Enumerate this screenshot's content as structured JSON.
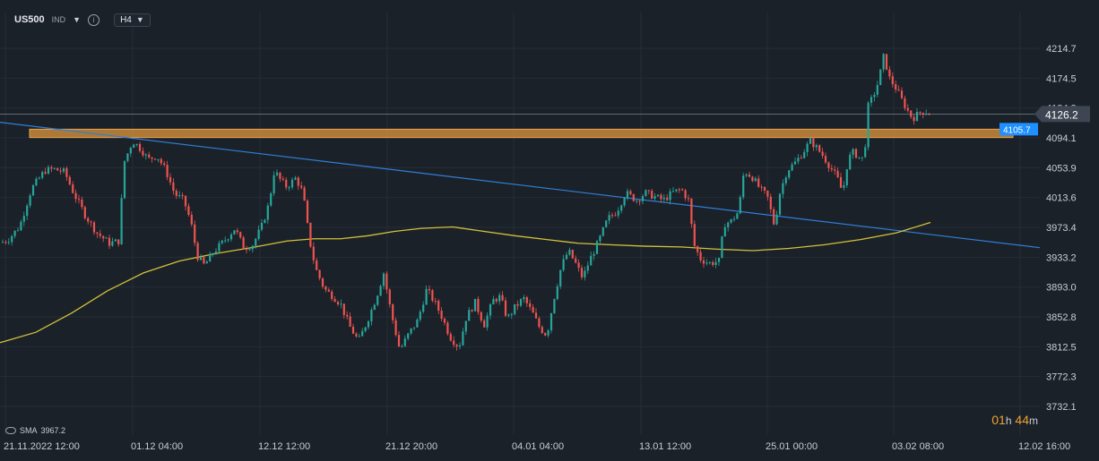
{
  "header": {
    "symbol": "US500",
    "symbol_type": "IND",
    "timeframe": "H4",
    "icons": [
      "chevron-down-icon",
      "info-icon"
    ]
  },
  "indicator": {
    "label": "SMA",
    "value": "3967.2"
  },
  "countdown": {
    "hours": "01",
    "h_unit": "h",
    "minutes": "44",
    "m_unit": "m"
  },
  "colors": {
    "background": "#1b2129",
    "up": "#26a69a",
    "down": "#ef5350",
    "sma": "#d4c13a",
    "trendline": "#2f7fd6",
    "zone": "#c8883a",
    "current_price_tag": "#3d4652",
    "zone_price_tag": "#1e90ff"
  },
  "chart_data": {
    "type": "candlestick",
    "instrument": "US500",
    "timeframe": "H4",
    "y_ticks": [
      "4214.7",
      "4174.5",
      "4134.3",
      "4094.1",
      "4053.9",
      "4013.6",
      "3973.4",
      "3933.2",
      "3893.0",
      "3852.8",
      "3812.5",
      "3772.3",
      "3732.1"
    ],
    "y_range": [
      3732.1,
      4214.7
    ],
    "x_ticks": [
      "21.11.2022 12:00",
      "01.12 04:00",
      "12.12 12:00",
      "21.12 20:00",
      "04.01 04:00",
      "13.01 12:00",
      "25.01 00:00",
      "03.02 08:00",
      "12.02 16:00"
    ],
    "current_price": "4126.2",
    "horizontal_zone": {
      "low": 4094.5,
      "high": 4105.7,
      "label": "4105.7"
    },
    "price_path": [
      [
        0,
        3952
      ],
      [
        10,
        3958
      ],
      [
        22,
        3975
      ],
      [
        35,
        4025
      ],
      [
        50,
        4050
      ],
      [
        60,
        4052
      ],
      [
        72,
        4048
      ],
      [
        82,
        4020
      ],
      [
        95,
        3990
      ],
      [
        108,
        3966
      ],
      [
        122,
        3952
      ],
      [
        133,
        3955
      ],
      [
        138,
        4060
      ],
      [
        148,
        4090
      ],
      [
        158,
        4078
      ],
      [
        165,
        4065
      ],
      [
        175,
        4070
      ],
      [
        185,
        4050
      ],
      [
        195,
        4018
      ],
      [
        205,
        4010
      ],
      [
        213,
        3980
      ],
      [
        220,
        3935
      ],
      [
        228,
        3922
      ],
      [
        238,
        3940
      ],
      [
        250,
        3955
      ],
      [
        262,
        3972
      ],
      [
        272,
        3946
      ],
      [
        282,
        3950
      ],
      [
        292,
        3975
      ],
      [
        300,
        4005
      ],
      [
        306,
        4050
      ],
      [
        314,
        4035
      ],
      [
        320,
        4028
      ],
      [
        330,
        4040
      ],
      [
        338,
        4020
      ],
      [
        345,
        3958
      ],
      [
        352,
        3918
      ],
      [
        362,
        3890
      ],
      [
        372,
        3880
      ],
      [
        380,
        3870
      ],
      [
        390,
        3840
      ],
      [
        400,
        3820
      ],
      [
        410,
        3848
      ],
      [
        420,
        3880
      ],
      [
        428,
        3912
      ],
      [
        436,
        3860
      ],
      [
        446,
        3808
      ],
      [
        456,
        3830
      ],
      [
        466,
        3848
      ],
      [
        476,
        3890
      ],
      [
        486,
        3870
      ],
      [
        494,
        3850
      ],
      [
        502,
        3826
      ],
      [
        512,
        3812
      ],
      [
        520,
        3852
      ],
      [
        530,
        3872
      ],
      [
        540,
        3842
      ],
      [
        550,
        3875
      ],
      [
        558,
        3880
      ],
      [
        566,
        3850
      ],
      [
        574,
        3865
      ],
      [
        584,
        3878
      ],
      [
        594,
        3858
      ],
      [
        602,
        3838
      ],
      [
        610,
        3828
      ],
      [
        618,
        3878
      ],
      [
        626,
        3920
      ],
      [
        634,
        3942
      ],
      [
        642,
        3925
      ],
      [
        650,
        3905
      ],
      [
        658,
        3930
      ],
      [
        668,
        3955
      ],
      [
        678,
        3985
      ],
      [
        688,
        3995
      ],
      [
        698,
        4020
      ],
      [
        710,
        4010
      ],
      [
        720,
        4020
      ],
      [
        730,
        4015
      ],
      [
        740,
        4010
      ],
      [
        750,
        4020
      ],
      [
        760,
        4025
      ],
      [
        768,
        4010
      ],
      [
        774,
        3950
      ],
      [
        782,
        3930
      ],
      [
        792,
        3925
      ],
      [
        802,
        3928
      ],
      [
        808,
        3978
      ],
      [
        816,
        3982
      ],
      [
        824,
        3995
      ],
      [
        830,
        4050
      ],
      [
        840,
        4040
      ],
      [
        848,
        4025
      ],
      [
        856,
        4015
      ],
      [
        864,
        3975
      ],
      [
        870,
        4020
      ],
      [
        878,
        4050
      ],
      [
        888,
        4062
      ],
      [
        896,
        4075
      ],
      [
        904,
        4090
      ],
      [
        910,
        4082
      ],
      [
        918,
        4070
      ],
      [
        926,
        4055
      ],
      [
        934,
        4040
      ],
      [
        940,
        4020
      ],
      [
        946,
        4065
      ],
      [
        952,
        4075
      ],
      [
        958,
        4068
      ],
      [
        964,
        4065
      ],
      [
        968,
        4135
      ],
      [
        974,
        4150
      ],
      [
        980,
        4170
      ],
      [
        986,
        4205
      ],
      [
        992,
        4175
      ],
      [
        1000,
        4160
      ],
      [
        1006,
        4145
      ],
      [
        1012,
        4132
      ],
      [
        1018,
        4120
      ],
      [
        1026,
        4128
      ],
      [
        1032,
        4130
      ],
      [
        1038,
        4126
      ]
    ],
    "sma_path": [
      [
        0,
        3818
      ],
      [
        40,
        3832
      ],
      [
        80,
        3858
      ],
      [
        120,
        3888
      ],
      [
        160,
        3912
      ],
      [
        200,
        3928
      ],
      [
        240,
        3938
      ],
      [
        280,
        3946
      ],
      [
        320,
        3955
      ],
      [
        350,
        3958
      ],
      [
        380,
        3958
      ],
      [
        410,
        3962
      ],
      [
        440,
        3968
      ],
      [
        470,
        3972
      ],
      [
        505,
        3974
      ],
      [
        540,
        3968
      ],
      [
        575,
        3962
      ],
      [
        610,
        3957
      ],
      [
        645,
        3952
      ],
      [
        680,
        3950
      ],
      [
        720,
        3948
      ],
      [
        760,
        3947
      ],
      [
        800,
        3944
      ],
      [
        840,
        3942
      ],
      [
        880,
        3945
      ],
      [
        920,
        3950
      ],
      [
        960,
        3957
      ],
      [
        1000,
        3966
      ],
      [
        1038,
        3980
      ]
    ],
    "trendline": {
      "points": [
        [
          0,
          4115
        ],
        [
          1160,
          3946
        ]
      ]
    }
  }
}
